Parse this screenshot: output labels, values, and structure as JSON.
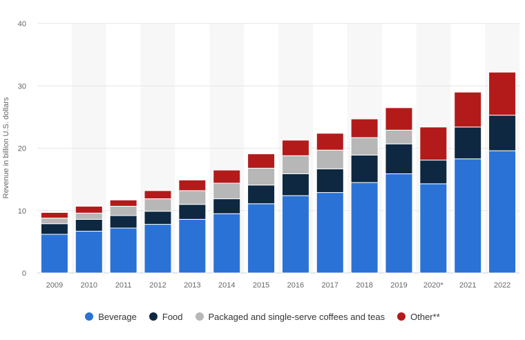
{
  "chart_data": {
    "type": "bar",
    "stacked": true,
    "title": "",
    "xlabel": "",
    "ylabel": "Revenue in billion U.S. dollars",
    "ylim": [
      0,
      40
    ],
    "yticks": [
      0,
      10,
      20,
      30,
      40
    ],
    "grid": true,
    "legend_position": "bottom",
    "categories": [
      "2009",
      "2010",
      "2011",
      "2012",
      "2013",
      "2014",
      "2015",
      "2016",
      "2017",
      "2018",
      "2019",
      "2020*",
      "2021",
      "2022"
    ],
    "series": [
      {
        "name": "Beverage",
        "color": "#2a72d6",
        "values": [
          6.2,
          6.7,
          7.2,
          7.8,
          8.6,
          9.5,
          11.1,
          12.4,
          12.9,
          14.5,
          15.9,
          14.3,
          18.3,
          19.6
        ]
      },
      {
        "name": "Food",
        "color": "#0e2841",
        "values": [
          1.7,
          1.9,
          2.0,
          2.1,
          2.4,
          2.4,
          3.0,
          3.5,
          3.8,
          4.4,
          4.8,
          3.8,
          5.1,
          5.7
        ]
      },
      {
        "name": "Packaged and single-serve coffees and teas",
        "color": "#b7b7b7",
        "values": [
          0.9,
          1.0,
          1.5,
          2.0,
          2.2,
          2.5,
          2.7,
          2.9,
          3.0,
          2.8,
          2.2,
          0.0,
          0.0,
          0.0
        ]
      },
      {
        "name": "Other**",
        "color": "#b31b1b",
        "values": [
          0.9,
          1.1,
          1.0,
          1.3,
          1.7,
          2.1,
          2.3,
          2.5,
          2.7,
          3.0,
          3.6,
          5.3,
          5.6,
          6.9
        ]
      }
    ]
  }
}
